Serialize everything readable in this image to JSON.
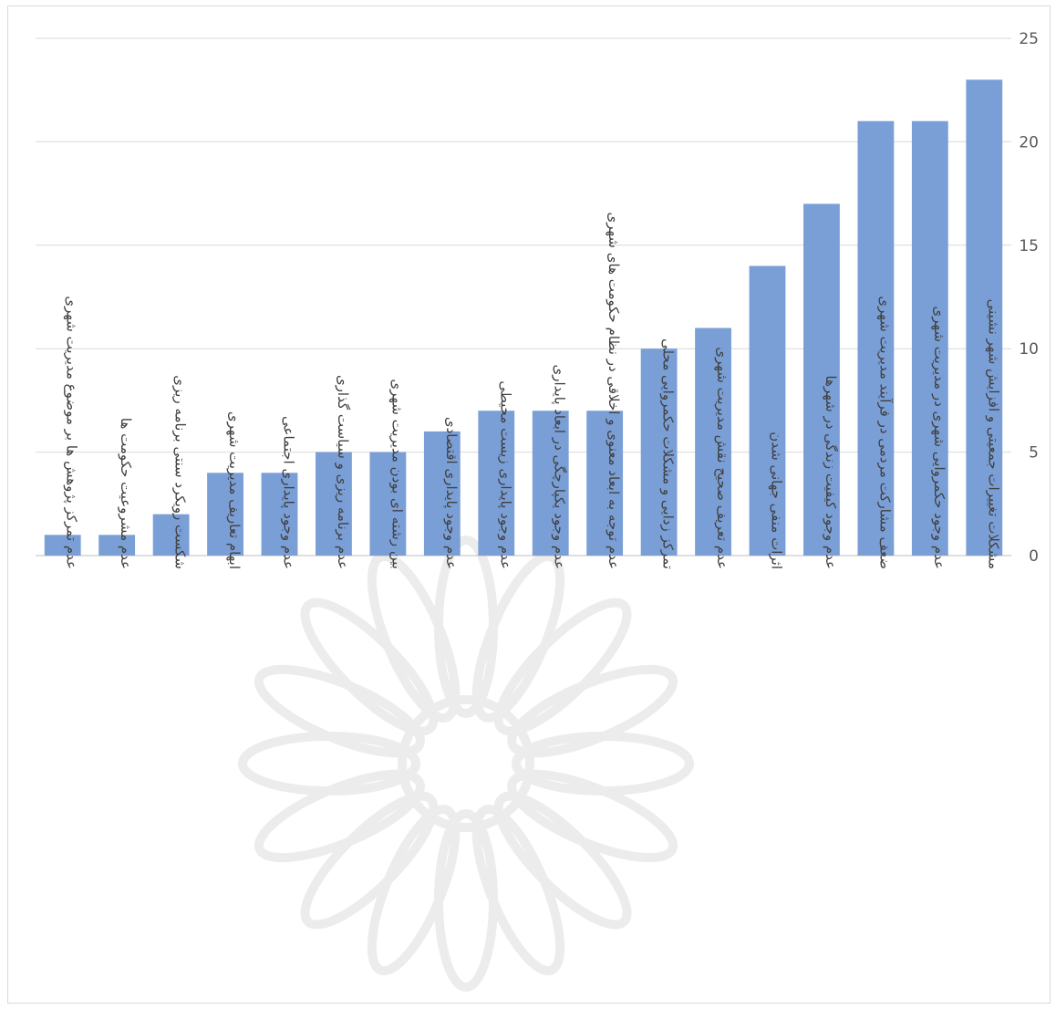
{
  "chart_data": {
    "type": "bar",
    "categories": [
      "عدم تمرکز پژوهش ها بر موضوع مدیریت شهری",
      "عدم مشروعیت حکومت ها",
      "شکست رویکرد سنتی برنامه ریزی",
      "ابهام تعاریف مدیریت شهری",
      "عدم وجود پایداری اجتماعی",
      "عدم برنامه ریزی و سیاست گذاری",
      "بین رشته ای بودن مدیریت شهری",
      "عدم وجود پایداری اقتصادی",
      "عدم وجود پایداری زیست محیطی",
      "عدم وجود یکپارچگی در ابعاد پایداری",
      "عدم توجه به ابعاد معنوی و اخلاقی در نظام حکومت های شهری",
      "تمرکز زدایی و مشکلات حکمروایی محلی",
      "عدم تعریف صحیح نقش مدیریت شهری",
      "اثرات منفی جهانی شدن",
      "عدم وجود کیفیت زندگی در شهرها",
      "ضعف مشارکت مردمی در فرآیند مدیریت شهری",
      "عدم وجود حکمروایی شهری در مدیریت شهری",
      "مشکلات تغییرات جمعیتی و افزایش شهر نشینی"
    ],
    "values": [
      1,
      1,
      2,
      4,
      4,
      5,
      5,
      6,
      7,
      7,
      7,
      10,
      11,
      14,
      17,
      21,
      21,
      23
    ],
    "yticks": [
      "0",
      "5",
      "10",
      "15",
      "20",
      "25"
    ],
    "ylim": [
      0,
      25
    ],
    "grid": true,
    "y_axis_side": "right",
    "bar_color": "#7a9fd6",
    "title": "",
    "xlabel": "",
    "ylabel": ""
  }
}
